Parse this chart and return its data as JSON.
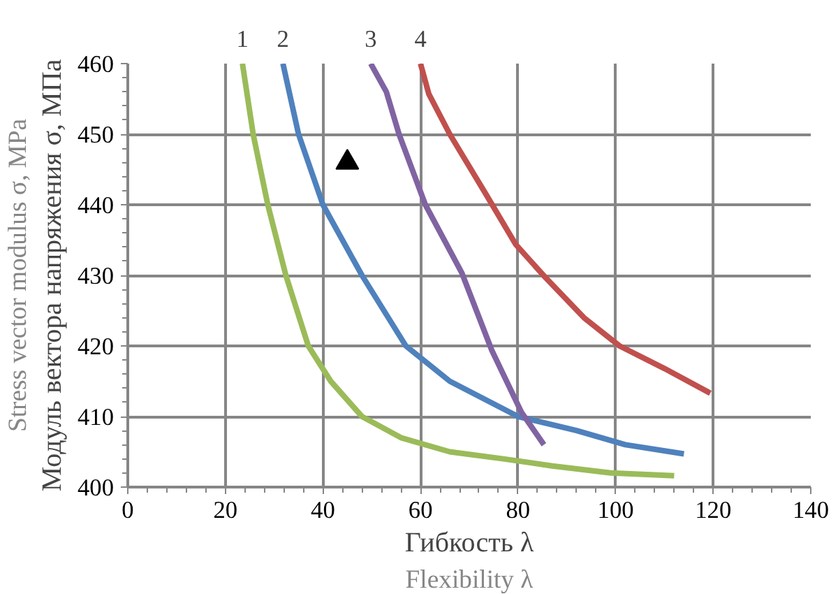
{
  "chart_data": {
    "type": "line",
    "xlabel": "Гибкость λ",
    "ylabel": "Модуль вектора напряжения σ, МПа",
    "annotations": [
      "Flexibility λ",
      "Stress vector modulus σ, MPa"
    ],
    "xlim": [
      0,
      140
    ],
    "xticks": [
      0,
      20,
      40,
      60,
      80,
      100,
      120,
      140
    ],
    "ylim": [
      400,
      460
    ],
    "yticks": [
      400,
      410,
      420,
      430,
      440,
      450,
      460
    ],
    "grid": true,
    "marker": "none",
    "line_style": "solid",
    "series": [
      {
        "name": "1",
        "color": "#9bbb59",
        "x": [
          23.5,
          25.7,
          28.7,
          32.4,
          37,
          41.6,
          48,
          56,
          66,
          77,
          87,
          99,
          112
        ],
        "values": [
          460,
          450,
          440,
          430,
          420,
          415,
          410,
          407,
          405,
          404,
          403,
          402,
          401.6
        ]
      },
      {
        "name": "2",
        "color": "#4f81bd",
        "x": [
          31.8,
          35,
          40,
          48,
          57,
          66,
          80,
          92,
          102,
          114
        ],
        "values": [
          460,
          450,
          440,
          430,
          420,
          415,
          410,
          408,
          406,
          404.7
        ]
      },
      {
        "name": "3",
        "color": "#8064a2",
        "x": [
          49.8,
          53,
          55.6,
          61,
          68.5,
          74.6,
          80.7,
          85.3
        ],
        "values": [
          460,
          456,
          450,
          440,
          430.3,
          419.4,
          410.6,
          406
        ]
      },
      {
        "name": "4",
        "color": "#c0504d",
        "x": [
          60,
          61.7,
          66,
          73.5,
          79.5,
          85.6,
          93.5,
          100.8,
          110,
          119.4
        ],
        "values": [
          460,
          455.7,
          450,
          441.4,
          434.4,
          429.7,
          424,
          420,
          416.8,
          413.3
        ]
      },
      {
        "type": "scatter",
        "marker": "triangle",
        "color": "#000000",
        "x": [
          45
        ],
        "values": [
          446
        ]
      }
    ]
  }
}
